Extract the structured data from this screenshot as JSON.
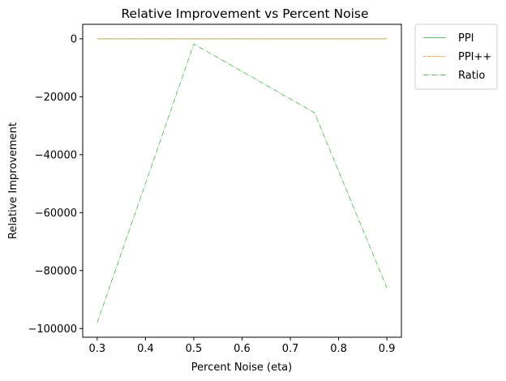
{
  "chart_data": {
    "type": "line",
    "title": "Relative Improvement vs Percent Noise",
    "xlabel": "Percent Noise (eta)",
    "ylabel": "Relative Improvement",
    "x": [
      0.3,
      0.5,
      0.75,
      0.9
    ],
    "xlim": [
      0.27,
      0.93
    ],
    "ylim": [
      -103000,
      5000
    ],
    "xticks": [
      0.3,
      0.4,
      0.5,
      0.6,
      0.7,
      0.8,
      0.9
    ],
    "xtick_labels": [
      "0.3",
      "0.4",
      "0.5",
      "0.6",
      "0.7",
      "0.8",
      "0.9"
    ],
    "yticks": [
      0,
      -20000,
      -40000,
      -60000,
      -80000,
      -100000
    ],
    "ytick_labels": [
      "0",
      "−20000",
      "−40000",
      "−60000",
      "−80000",
      "−100000"
    ],
    "grid": false,
    "legend_position": "outside-top-right",
    "series": [
      {
        "name": "PPI",
        "values": [
          0,
          0,
          0,
          0
        ],
        "color": "#2ca02c",
        "style": "solid"
      },
      {
        "name": "PPI++",
        "values": [
          0,
          0,
          0,
          0
        ],
        "color": "#ff7f0e",
        "style": "dashed"
      },
      {
        "name": "Ratio",
        "values": [
          -98000,
          -1800,
          -25500,
          -86000
        ],
        "color": "#2ca02c",
        "style": "dashdot"
      }
    ]
  }
}
